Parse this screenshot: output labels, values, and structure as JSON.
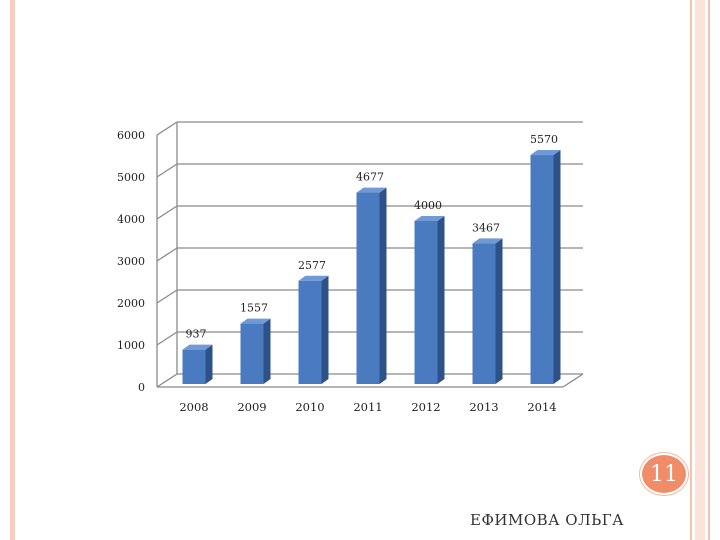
{
  "slide": {
    "number": "11",
    "author": "Ефимова Ольга",
    "author_display": "ЕФИМОВА ОЛЬГА"
  },
  "colors": {
    "bar_front": "#4a7bc0",
    "bar_side": "#2d5289",
    "bar_top": "#6f9ad6",
    "grid": "#8a8a8a",
    "accent_circle": "#f08d68",
    "frame": "#f6cfc0"
  },
  "chart_data": {
    "type": "bar",
    "style": "3d-column",
    "categories": [
      "2008",
      "2009",
      "2010",
      "2011",
      "2012",
      "2013",
      "2014"
    ],
    "values": [
      937,
      1557,
      2577,
      4677,
      4000,
      3467,
      5570
    ],
    "data_labels": [
      "937",
      "1557",
      "2577",
      "4677",
      "4000",
      "3467",
      "5570"
    ],
    "y_ticks": [
      "0",
      "1000",
      "2000",
      "3000",
      "4000",
      "5000",
      "6000"
    ],
    "ylim": [
      0,
      6000
    ],
    "title": "",
    "xlabel": "",
    "ylabel": "",
    "grid": true,
    "legend": "none"
  }
}
